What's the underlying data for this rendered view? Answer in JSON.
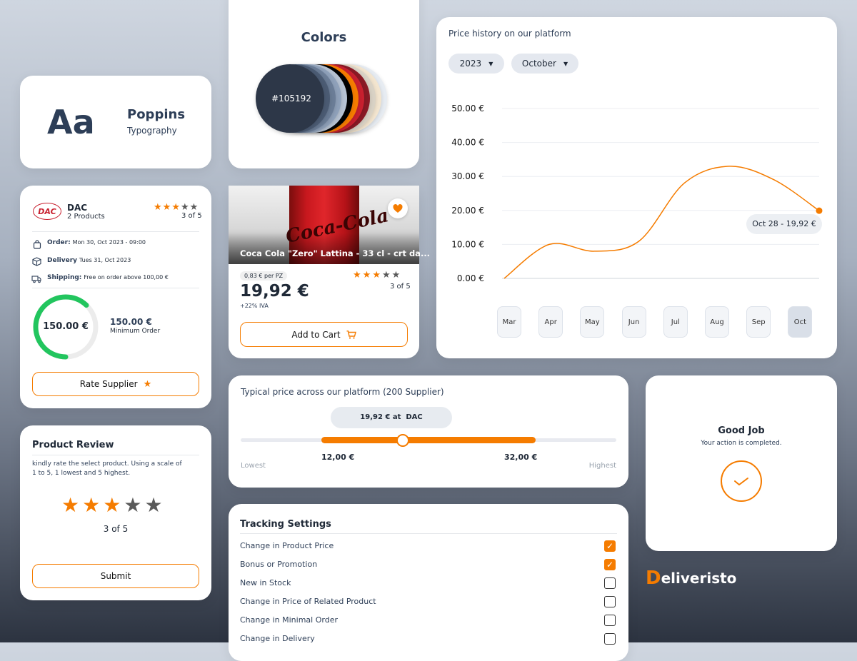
{
  "typography": {
    "sample": "Aa",
    "font_name": "Poppins",
    "subtitle": "Typography"
  },
  "colors": {
    "title": "Colors",
    "primary_hex": "#105192",
    "swatches": [
      "#2d3748",
      "#4b5b73",
      "#6b7d97",
      "#8fa1ba",
      "#b7c3d3",
      "#000000",
      "#f57c00",
      "#c8202f",
      "#8a1a25",
      "#d9d2c5",
      "#f3e5cf",
      "#e7ecf2"
    ]
  },
  "supplier": {
    "logo_text": "DAC",
    "name": "DAC",
    "products": "2 Products",
    "rating": 3,
    "rating_text": "3 of 5",
    "order_label": "Order:",
    "order_value": "Mon 30, Oct 2023 - 09:00",
    "delivery_label": "Delivery",
    "delivery_value": "Tues 31, Oct 2023",
    "shipping_label": "Shipping:",
    "shipping_value": "Free on order above 100,00 €",
    "gauge_value": "150.00 €",
    "gauge_progress": 0.62,
    "min_order_value": "150.00 €",
    "min_order_label": "Minimum Order",
    "rate_button": "Rate Supplier"
  },
  "product": {
    "name": "Coca Cola \"Zero\" Lattina - 33 cl - crt da...",
    "can_text": "Coca-Cola",
    "unit_price": "0,83 € per PZ",
    "price": "19,92 €",
    "vat": "+22% IVA",
    "rating": 3,
    "rating_text": "3 of 5",
    "add_to_cart": "Add to Cart"
  },
  "price_history": {
    "title": "Price history on our platform",
    "year": "2023",
    "month": "October",
    "tooltip": "Oct 28 - 19,92 €",
    "months": [
      "Mar",
      "Apr",
      "May",
      "Jun",
      "Jul",
      "Aug",
      "Sep",
      "Oct"
    ],
    "active_month": "Oct",
    "chart_data": {
      "type": "line",
      "x": [
        "Mar",
        "Apr",
        "May",
        "Jun",
        "Jul",
        "Aug",
        "Sep",
        "Oct"
      ],
      "values": [
        0,
        10,
        8,
        11,
        28,
        33,
        29,
        19.92
      ],
      "yticks": [
        "50.00 €",
        "40.00 €",
        "30.00 €",
        "20.00 €",
        "10.00 €",
        "0.00 €"
      ],
      "ylim": [
        0,
        50
      ],
      "grid": true,
      "highlight": {
        "x": "Oct",
        "y": 19.92
      }
    }
  },
  "typical_price": {
    "title": "Typical price across our platform (200 Supplier)",
    "current": "19,92 € at  DAC",
    "low": "12,00 €",
    "high": "32,00 €",
    "lowest_label": "Lowest",
    "highest_label": "Highest",
    "position": 0.38
  },
  "good_job": {
    "title": "Good Job",
    "message": "Your action is completed."
  },
  "review": {
    "title": "Product Review",
    "text": "kindly rate the select product. Using a scale of 1 to 5, 1 lowest and 5 highest.",
    "rating": 3,
    "rating_text": "3 of 5",
    "submit": "Submit"
  },
  "tracking": {
    "title": "Tracking Settings",
    "items": [
      {
        "label": "Change in Product Price",
        "checked": true
      },
      {
        "label": "Bonus or Promotion",
        "checked": true
      },
      {
        "label": "New in Stock",
        "checked": false
      },
      {
        "label": "Change in Price of Related Product",
        "checked": false
      },
      {
        "label": "Change in Minimal Order",
        "checked": false
      },
      {
        "label": "Change in Delivery",
        "checked": false
      }
    ]
  },
  "brand": {
    "name": "Deliveristo",
    "initial": "D",
    "rest": "eliveristo"
  }
}
